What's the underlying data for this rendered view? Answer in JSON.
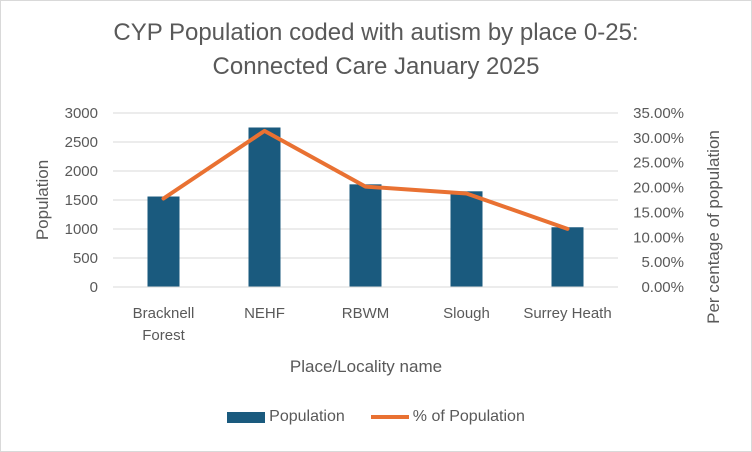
{
  "chart_data": {
    "type": "bar",
    "title_line1": "CYP Population coded with autism by place 0-25:",
    "title_line2": "Connected Care January 2025",
    "xlabel": "Place/Locality name",
    "ylabel": "Population",
    "y2label": "Per centage of population",
    "categories": [
      "Bracknell Forest",
      "NEHF",
      "RBWM",
      "Slough",
      "Surrey Heath"
    ],
    "category_lines": [
      [
        "Bracknell",
        "Forest"
      ],
      [
        "NEHF"
      ],
      [
        "RBWM"
      ],
      [
        "Slough"
      ],
      [
        "Surrey Heath"
      ]
    ],
    "ylim": [
      0,
      3000
    ],
    "yticks": [
      "0",
      "500",
      "1000",
      "1500",
      "2000",
      "2500",
      "3000"
    ],
    "y2lim": [
      0,
      35
    ],
    "y2ticks": [
      "0.00%",
      "5.00%",
      "10.00%",
      "15.00%",
      "20.00%",
      "25.00%",
      "30.00%",
      "35.00%"
    ],
    "series": [
      {
        "name": "Population",
        "type": "bar",
        "axis": "left",
        "values": [
          1560,
          2750,
          1770,
          1650,
          1030
        ]
      },
      {
        "name": "% of Population",
        "type": "line",
        "axis": "right",
        "values": [
          17.8,
          31.4,
          20.2,
          18.8,
          11.7
        ]
      }
    ],
    "colors": {
      "bar": "#1a5a7e",
      "line": "#e97132",
      "grid": "#d9d9d9",
      "text": "#595959"
    },
    "legend_position": "bottom",
    "grid": true
  }
}
